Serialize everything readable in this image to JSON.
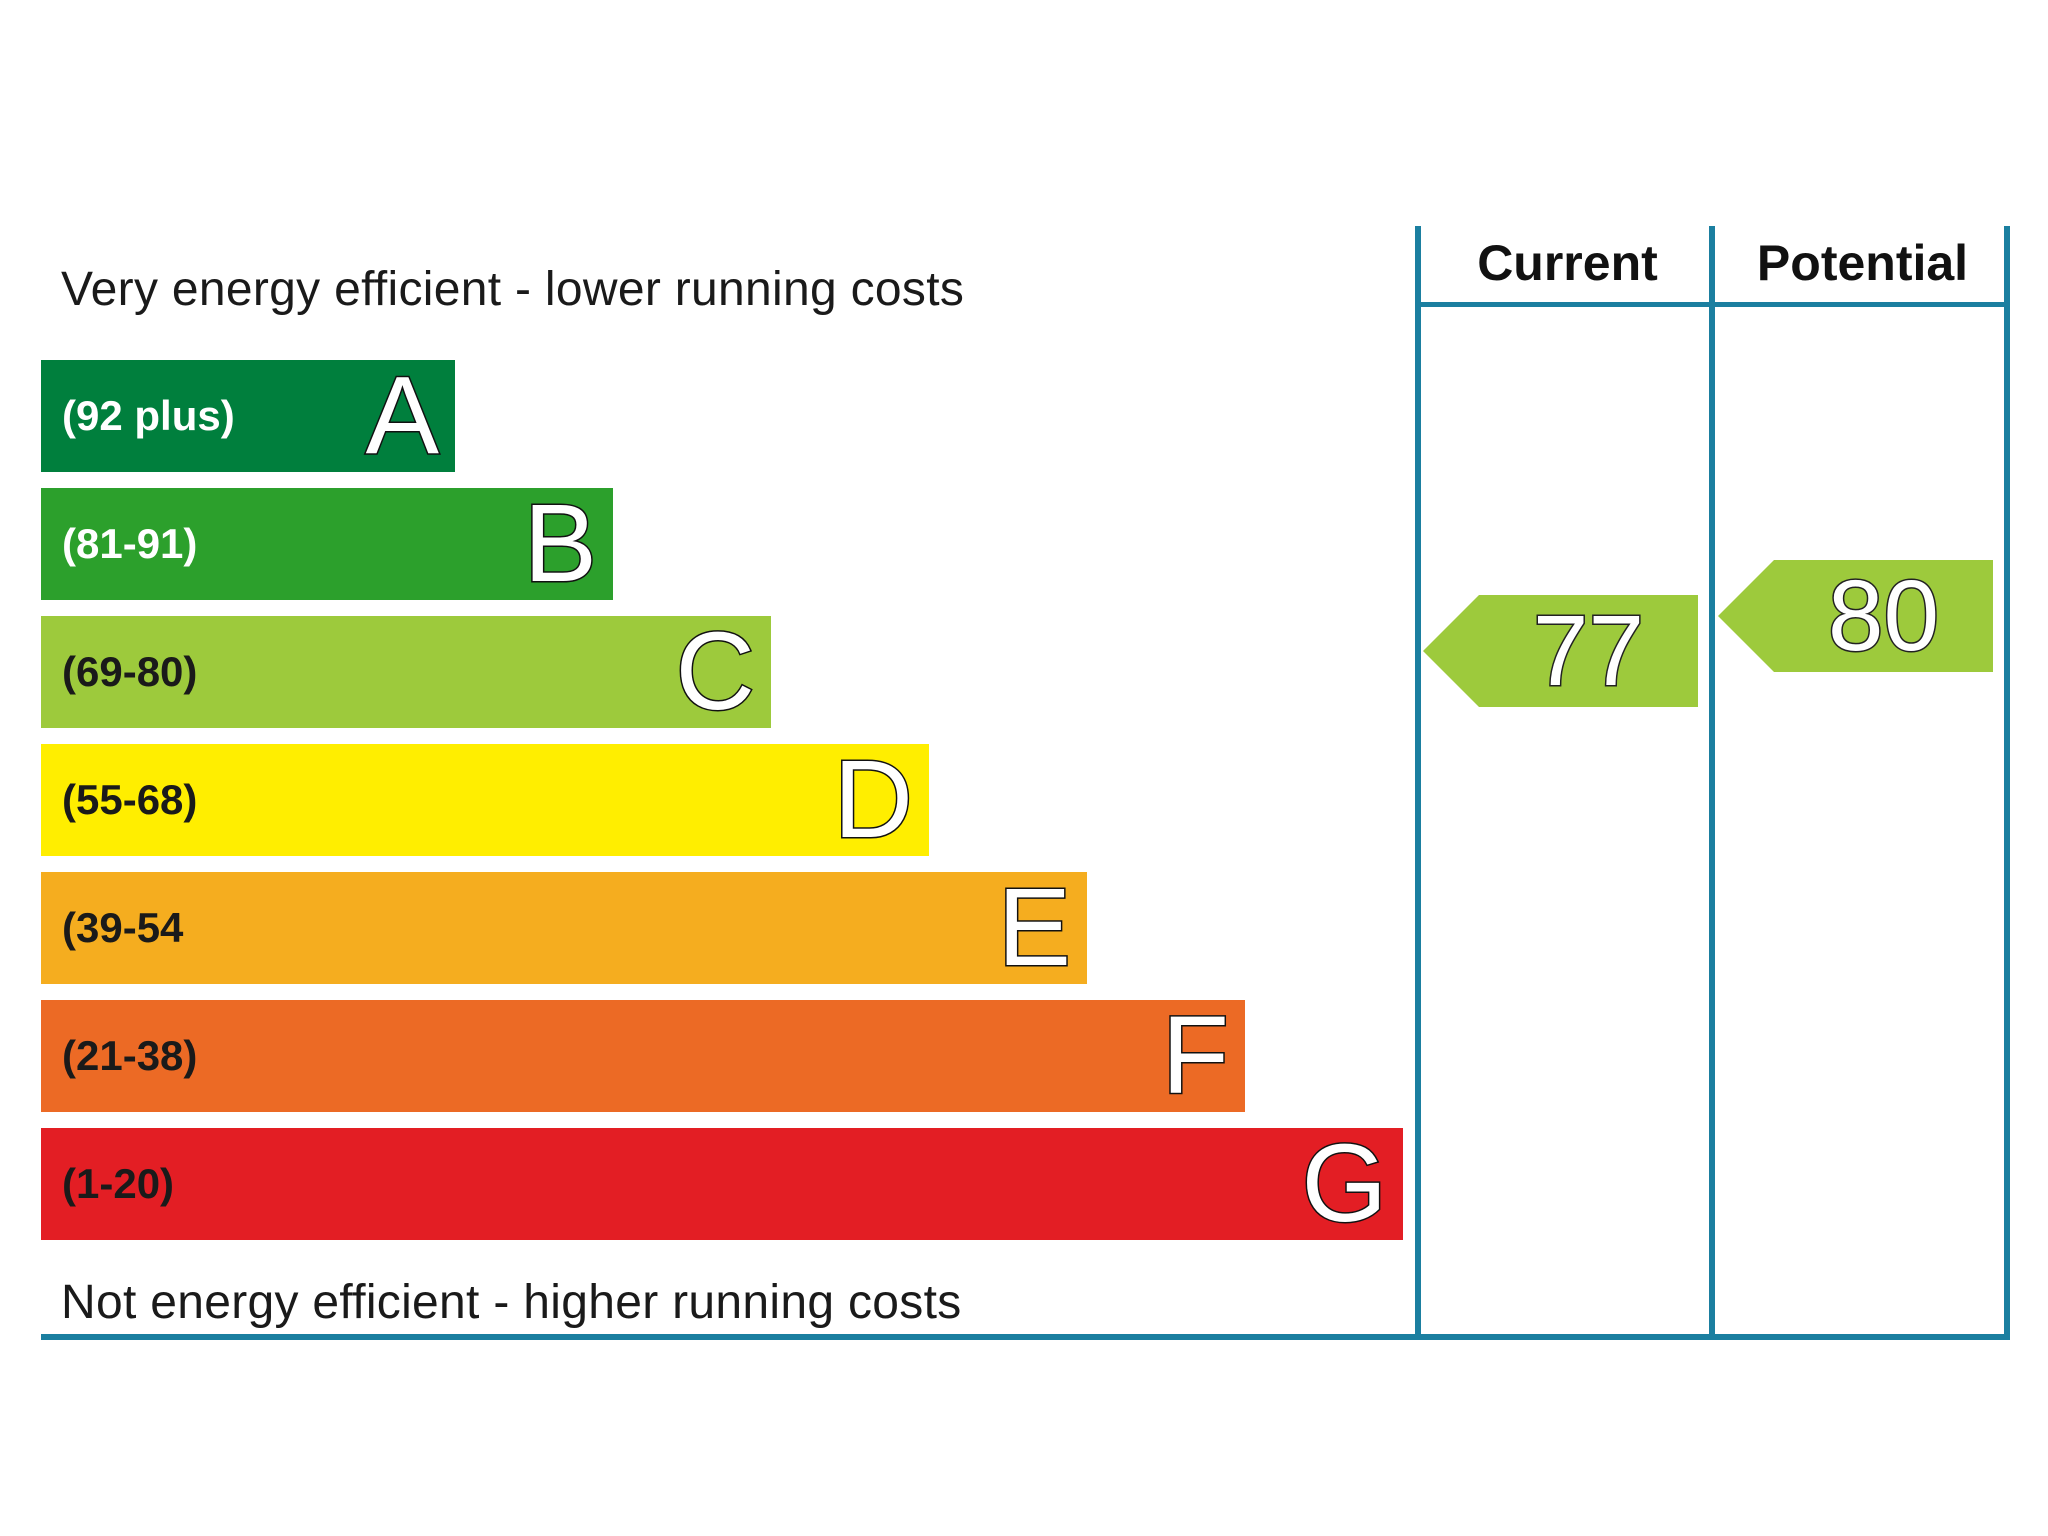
{
  "chart_data": {
    "type": "bar",
    "top_caption": "Very energy efficient - lower running costs",
    "bottom_caption": "Not energy efficient - higher running costs",
    "bands": [
      {
        "letter": "A",
        "range": "(92 plus)",
        "color": "#007f3d",
        "text_color": "#ffffff"
      },
      {
        "letter": "B",
        "range": "(81-91)",
        "color": "#2ca02c",
        "text_color": "#ffffff"
      },
      {
        "letter": "C",
        "range": "(69-80)",
        "color": "#9dca3c",
        "text_color": "#1a1a1a"
      },
      {
        "letter": "D",
        "range": "(55-68)",
        "color": "#ffee00",
        "text_color": "#1a1a1a"
      },
      {
        "letter": "E",
        "range": "(39-54",
        "color": "#f5ad1f",
        "text_color": "#1a1a1a"
      },
      {
        "letter": "F",
        "range": "(21-38)",
        "color": "#ec6a25",
        "text_color": "#1a1a1a"
      },
      {
        "letter": "G",
        "range": "(1-20)",
        "color": "#e31e24",
        "text_color": "#1a1a1a"
      }
    ],
    "columns": [
      {
        "label": "Current",
        "value": 77,
        "band": "C",
        "color": "#9dca3c"
      },
      {
        "label": "Potential",
        "value": 80,
        "band": "C",
        "color": "#9dca3c"
      }
    ],
    "rule_color": "#1b7fa0"
  }
}
